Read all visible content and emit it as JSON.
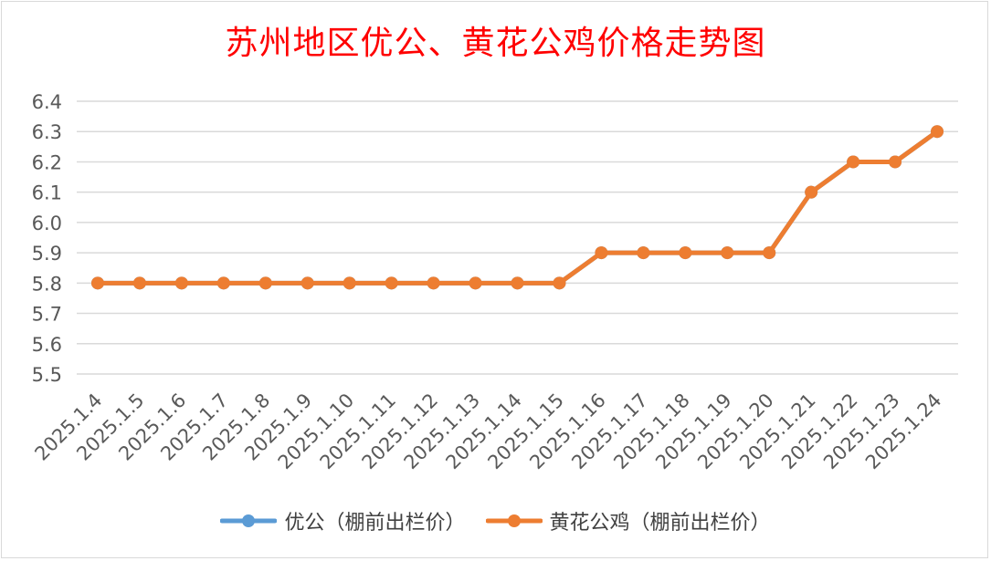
{
  "chart_data": {
    "type": "line",
    "title": "苏州地区优公、黄花公鸡价格走势图",
    "categories": [
      "2025.1.4",
      "2025.1.5",
      "2025.1.6",
      "2025.1.7",
      "2025.1.8",
      "2025.1.9",
      "2025.1.10",
      "2025.1.11",
      "2025.1.12",
      "2025.1.13",
      "2025.1.14",
      "2025.1.15",
      "2025.1.16",
      "2025.1.17",
      "2025.1.18",
      "2025.1.19",
      "2025.1.20",
      "2025.1.21",
      "2025.1.22",
      "2025.1.23",
      "2025.1.24"
    ],
    "series": [
      {
        "name": "优公（棚前出栏价）",
        "color": "#5b9bd5",
        "values": [
          5.8,
          5.8,
          5.8,
          5.8,
          5.8,
          5.8,
          5.8,
          5.8,
          5.8,
          5.8,
          5.8,
          5.8,
          5.9,
          5.9,
          5.9,
          5.9,
          5.9,
          6.1,
          6.2,
          6.2,
          6.3
        ]
      },
      {
        "name": "黄花公鸡（棚前出栏价）",
        "color": "#ed7d31",
        "values": [
          5.8,
          5.8,
          5.8,
          5.8,
          5.8,
          5.8,
          5.8,
          5.8,
          5.8,
          5.8,
          5.8,
          5.8,
          5.9,
          5.9,
          5.9,
          5.9,
          5.9,
          6.1,
          6.2,
          6.2,
          6.3
        ]
      }
    ],
    "ylim": [
      5.5,
      6.4
    ],
    "yticks": [
      "5.5",
      "5.6",
      "5.7",
      "5.8",
      "5.9",
      "6.0",
      "6.1",
      "6.2",
      "6.3",
      "6.4"
    ],
    "grid": true,
    "legend_position": "bottom"
  }
}
